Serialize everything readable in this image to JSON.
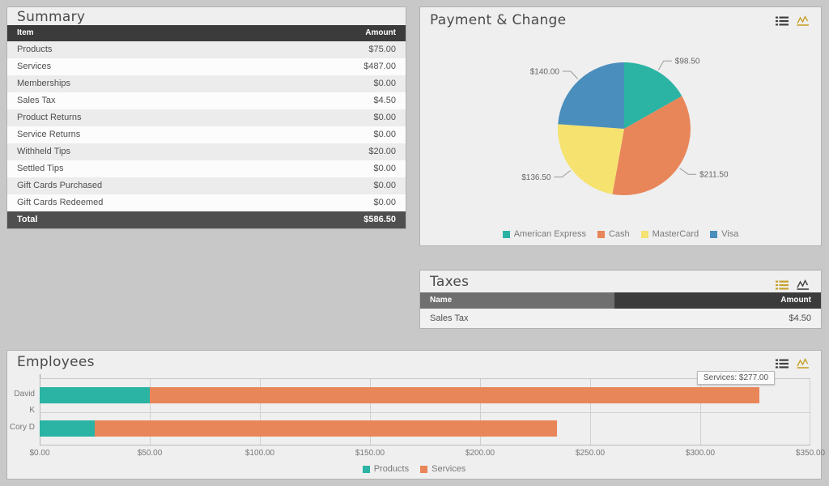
{
  "summary": {
    "title": "Summary",
    "columns": [
      "Item",
      "Amount"
    ],
    "rows": [
      [
        "Products",
        "$75.00"
      ],
      [
        "Services",
        "$487.00"
      ],
      [
        "Memberships",
        "$0.00"
      ],
      [
        "Sales Tax",
        "$4.50"
      ],
      [
        "Product Returns",
        "$0.00"
      ],
      [
        "Service Returns",
        "$0.00"
      ],
      [
        "Withheld Tips",
        "$20.00"
      ],
      [
        "Settled Tips",
        "$0.00"
      ],
      [
        "Gift Cards Purchased",
        "$0.00"
      ],
      [
        "Gift Cards Redeemed",
        "$0.00"
      ]
    ],
    "total_row": [
      "Total",
      "$586.50"
    ]
  },
  "payment": {
    "title": "Payment & Change"
  },
  "taxes": {
    "title": "Taxes",
    "columns": [
      "Name",
      "Amount"
    ],
    "rows": [
      [
        "Sales Tax",
        "$4.50"
      ]
    ]
  },
  "employees": {
    "title": "Employees",
    "tooltip": "Services: $277.00"
  },
  "colors": {
    "teal": "#2bb3a4",
    "orange": "#e8865a",
    "yellow": "#f5e26f",
    "blue": "#4a8ebd",
    "icon_active_gold": "#c7a12b",
    "icon_inactive_dark": "#3f3f3f",
    "header_dark": "#3b3b3b",
    "header_medium": "#6f6f6f",
    "total_row_bg": "#4f4f4f",
    "panel_bg": "#efefef",
    "page_bg": "#c8c8c8"
  },
  "chart_data": [
    {
      "type": "pie",
      "title": "Payment & Change",
      "labels": [
        "American Express",
        "Cash",
        "MasterCard",
        "Visa"
      ],
      "values": [
        98.5,
        211.5,
        136.5,
        140.0
      ],
      "value_labels": [
        "$98.50",
        "$211.50",
        "$136.50",
        "$140.00"
      ],
      "colors": [
        "#2bb3a4",
        "#e8865a",
        "#f5e26f",
        "#4a8ebd"
      ],
      "total": 586.5,
      "start_angle_deg": 0,
      "direction": "clockwise",
      "legend_position": "bottom"
    },
    {
      "type": "bar",
      "title": "Employees",
      "orientation": "horizontal",
      "stacked": true,
      "categories": [
        "David K",
        "Cory D"
      ],
      "series": [
        {
          "name": "Products",
          "color": "#2bb3a4",
          "values": [
            50.0,
            25.0
          ]
        },
        {
          "name": "Services",
          "color": "#e8865a",
          "values": [
            277.0,
            210.0
          ]
        }
      ],
      "xlim": [
        0,
        350
      ],
      "x_ticks": [
        "$0.00",
        "$50.00",
        "$100.00",
        "$150.00",
        "$200.00",
        "$250.00",
        "$300.00",
        "$350.00"
      ],
      "grid": true,
      "tooltip": "Services: $277.00",
      "legend_position": "bottom"
    }
  ]
}
